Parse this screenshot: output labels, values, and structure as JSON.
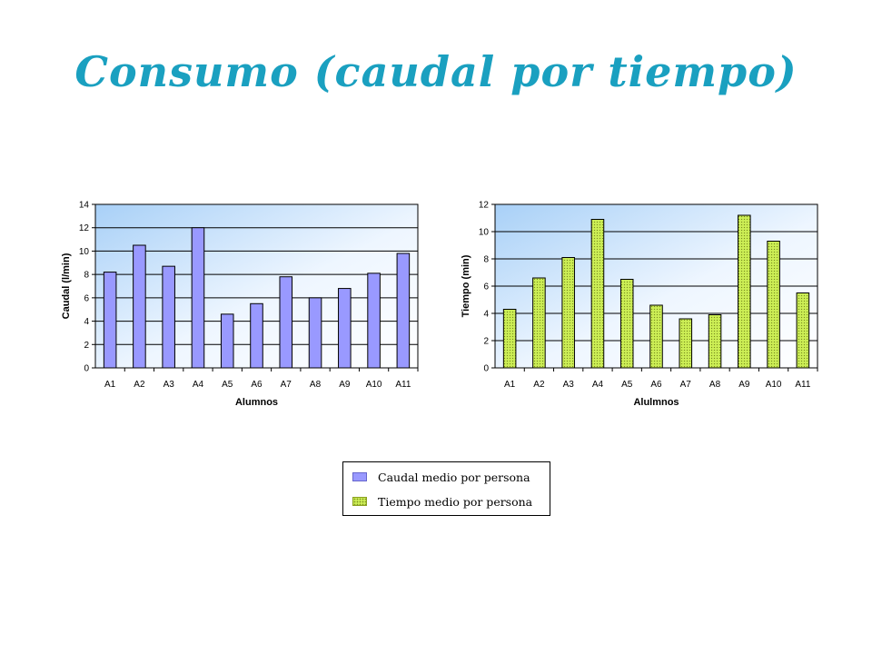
{
  "page": {
    "title": "Consumo (caudal por tiempo)",
    "title_color": "#1aa0c0"
  },
  "chart_data": [
    {
      "type": "bar",
      "categories": [
        "A1",
        "A2",
        "A3",
        "A4",
        "A5",
        "A6",
        "A7",
        "A8",
        "A9",
        "A10",
        "A11"
      ],
      "series": [
        {
          "name": "Caudal medio por persona",
          "values": [
            8.2,
            10.5,
            8.7,
            12.0,
            4.6,
            5.5,
            7.8,
            6.0,
            6.8,
            8.1,
            9.8
          ],
          "color": "#9999ff"
        }
      ],
      "xlabel": "Alumnos",
      "ylabel": "Caudal (l/min)",
      "ylim": [
        0,
        14
      ],
      "yticks": [
        0,
        2,
        4,
        6,
        8,
        10,
        12,
        14
      ],
      "grid": true,
      "background": "gradient-blue"
    },
    {
      "type": "bar",
      "categories": [
        "A1",
        "A2",
        "A3",
        "A4",
        "A5",
        "A6",
        "A7",
        "A8",
        "A9",
        "A10",
        "A11"
      ],
      "series": [
        {
          "name": "Tiempo medio por persona",
          "values": [
            4.3,
            6.6,
            8.1,
            10.9,
            6.5,
            4.6,
            3.6,
            3.9,
            11.2,
            9.3,
            5.5
          ],
          "color": "#ccee55",
          "pattern": "dotted"
        }
      ],
      "xlabel": "Alulmnos",
      "ylabel": "Tiempo (min)",
      "ylim": [
        0,
        12
      ],
      "yticks": [
        0,
        2,
        4,
        6,
        8,
        10,
        12
      ],
      "grid": true,
      "background": "gradient-blue"
    }
  ],
  "legend": {
    "items": [
      {
        "label": "Caudal medio por persona",
        "color": "#9999ff"
      },
      {
        "label": "Tiempo medio por persona",
        "color": "#ccee55"
      }
    ]
  }
}
